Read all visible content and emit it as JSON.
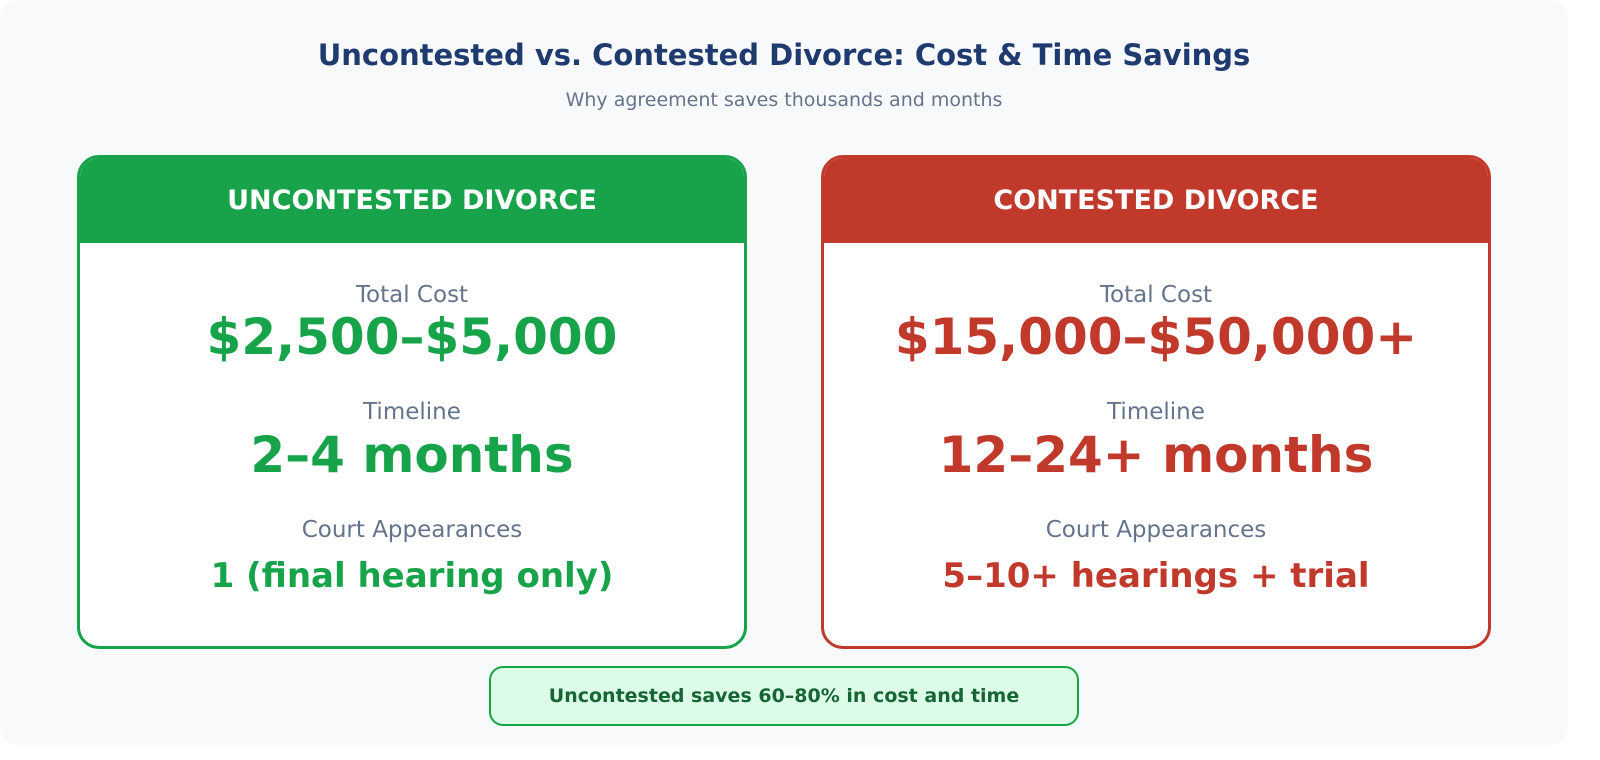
{
  "title": "Uncontested vs. Contested Divorce: Cost & Time Savings",
  "subtitle": "Why agreement saves thousands and months",
  "colors": {
    "uncontested": "#16a34a",
    "contested": "#c0392b",
    "banner_bg": "#dcfce7",
    "banner_text": "#166534"
  },
  "cards": [
    {
      "header": "UNCONTESTED DIVORCE",
      "cost_label": "Total Cost",
      "cost": "$2,500–$5,000",
      "timeline_label": "Timeline",
      "timeline": "2–4 months",
      "court_label": "Court Appearances",
      "court": "1 (final hearing only)"
    },
    {
      "header": "CONTESTED DIVORCE",
      "cost_label": "Total Cost",
      "cost": "$15,000–$50,000+",
      "timeline_label": "Timeline",
      "timeline": "12–24+ months",
      "court_label": "Court Appearances",
      "court": "5–10+ hearings + trial"
    }
  ],
  "banner": "Uncontested saves 60–80% in cost and time"
}
